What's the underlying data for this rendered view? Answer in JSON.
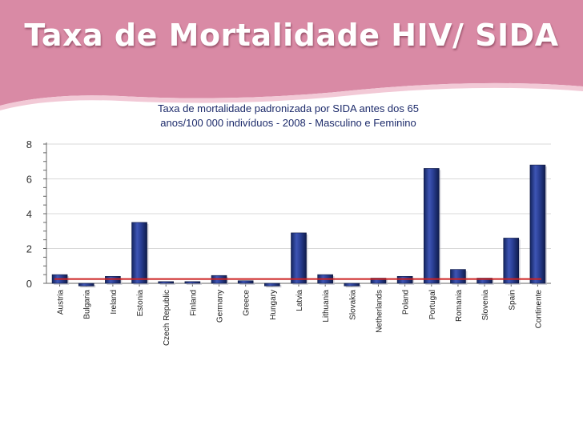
{
  "slide_title": "Taxa de Mortalidade HIV/ SIDA",
  "colors": {
    "banner": "#d98aa5",
    "bar": "#2a3f95",
    "reference_line": "#cc2222",
    "title_text": "#1d2b6b"
  },
  "chart_data": {
    "type": "bar",
    "title_line1": "Taxa de mortalidade padronizada por SIDA antes dos 65",
    "title_line2": "anos/100 000 indivíduos - 2008 - Masculino e Feminino",
    "categories": [
      "Austria",
      "Bulgaria",
      "Ireland",
      "Estonia",
      "Czech Republic",
      "Finland",
      "Germany",
      "Greece",
      "Hungary",
      "Latvia",
      "Lithuania",
      "Slovakia",
      "Netherlands",
      "Poland",
      "Portugal",
      "Romania",
      "Slovenia",
      "Spain",
      "Continente"
    ],
    "values": [
      0.5,
      -0.15,
      0.4,
      3.5,
      0.1,
      0.1,
      0.45,
      0.15,
      -0.15,
      2.9,
      0.5,
      -0.15,
      0.3,
      0.4,
      6.6,
      0.8,
      0.3,
      2.6,
      6.8
    ],
    "reference_value": 0.25,
    "ylim": [
      0,
      8
    ],
    "yticks": [
      "0",
      "2",
      "4",
      "6",
      "8"
    ],
    "grid": true,
    "xlabel": "",
    "ylabel": ""
  }
}
